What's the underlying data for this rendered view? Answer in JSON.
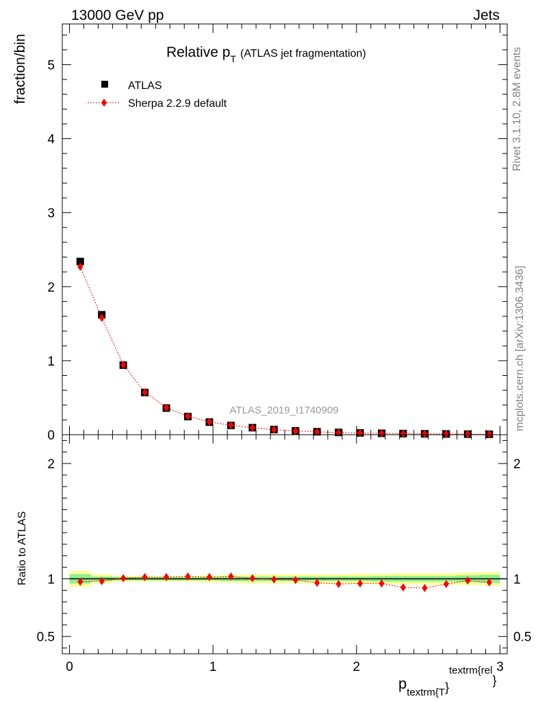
{
  "header": {
    "left": "13000 GeV pp",
    "right": "Jets"
  },
  "side_labels": {
    "rivet": "Rivet 3.1.10,  2.8M events",
    "source": "mcplots.cern.ch [arXiv:1306.3436]"
  },
  "title": {
    "main": "Relative p",
    "sub": "T",
    "note": "(ATLAS jet fragmentation)"
  },
  "analysis_id": "ATLAS_2019_I1740909",
  "legend": {
    "data_label": "ATLAS",
    "mc_label": "Sherpa 2.2.9 default"
  },
  "colors": {
    "data": "#000000",
    "mc": "#ff0000",
    "band_inner": "#90ee90",
    "band_outer": "#ffff99",
    "side_text": "#808080"
  },
  "chart_data": [
    {
      "type": "scatter",
      "panel": "main",
      "ylabel": "fraction/bin",
      "xlim": [
        -0.05,
        3.05
      ],
      "ylim": [
        0,
        5.55
      ],
      "y_ticks": [
        "0",
        "1",
        "2",
        "3",
        "4",
        "5"
      ],
      "x": [
        0.075,
        0.225,
        0.375,
        0.525,
        0.675,
        0.825,
        0.975,
        1.125,
        1.275,
        1.425,
        1.575,
        1.725,
        1.875,
        2.025,
        2.175,
        2.325,
        2.475,
        2.625,
        2.775,
        2.925
      ],
      "series": [
        {
          "name": "ATLAS",
          "marker": "square",
          "values": [
            2.34,
            1.62,
            0.94,
            0.57,
            0.36,
            0.245,
            0.17,
            0.125,
            0.095,
            0.07,
            0.052,
            0.04,
            0.031,
            0.024,
            0.019,
            0.015,
            0.012,
            0.0095,
            0.0075,
            0.006
          ]
        },
        {
          "name": "Sherpa 2.2.9 default",
          "marker": "diamond",
          "line": "dotted",
          "values": [
            2.27,
            1.58,
            0.945,
            0.575,
            0.365,
            0.25,
            0.173,
            0.128,
            0.095,
            0.069,
            0.051,
            0.038,
            0.029,
            0.023,
            0.018,
            0.0138,
            0.011,
            0.0091,
            0.0074,
            0.0058
          ]
        }
      ]
    },
    {
      "type": "scatter",
      "panel": "ratio",
      "ylabel": "Ratio to ATLAS",
      "xlabel_main": "p",
      "xlabel_sub": "textrm{T",
      "xlabel_brace": "}",
      "xlabel_sup": "textrm{rel",
      "xlabel_brace2": "}",
      "xlim": [
        -0.05,
        3.05
      ],
      "ylim": [
        0.35,
        2.25
      ],
      "x_ticks": [
        "0",
        "1",
        "2",
        "3"
      ],
      "y_ticks": [
        "0.5",
        "1",
        "2"
      ],
      "x": [
        0.075,
        0.225,
        0.375,
        0.525,
        0.675,
        0.825,
        0.975,
        1.125,
        1.275,
        1.425,
        1.575,
        1.725,
        1.875,
        2.025,
        2.175,
        2.325,
        2.475,
        2.625,
        2.775,
        2.925
      ],
      "band_inner": [
        0.04,
        0.02,
        0.015,
        0.015,
        0.015,
        0.015,
        0.015,
        0.02,
        0.02,
        0.02,
        0.02,
        0.02,
        0.02,
        0.02,
        0.025,
        0.025,
        0.025,
        0.025,
        0.03,
        0.035
      ],
      "band_outer": [
        0.07,
        0.04,
        0.025,
        0.025,
        0.025,
        0.025,
        0.03,
        0.035,
        0.04,
        0.04,
        0.04,
        0.04,
        0.04,
        0.045,
        0.045,
        0.05,
        0.05,
        0.05,
        0.055,
        0.06
      ],
      "series": [
        {
          "name": "Sherpa 2.2.9 default",
          "values": [
            0.975,
            0.98,
            1.005,
            1.015,
            1.015,
            1.02,
            1.015,
            1.02,
            1.005,
            0.995,
            0.99,
            0.965,
            0.955,
            0.96,
            0.96,
            0.925,
            0.92,
            0.955,
            0.985,
            0.97
          ]
        }
      ]
    }
  ]
}
